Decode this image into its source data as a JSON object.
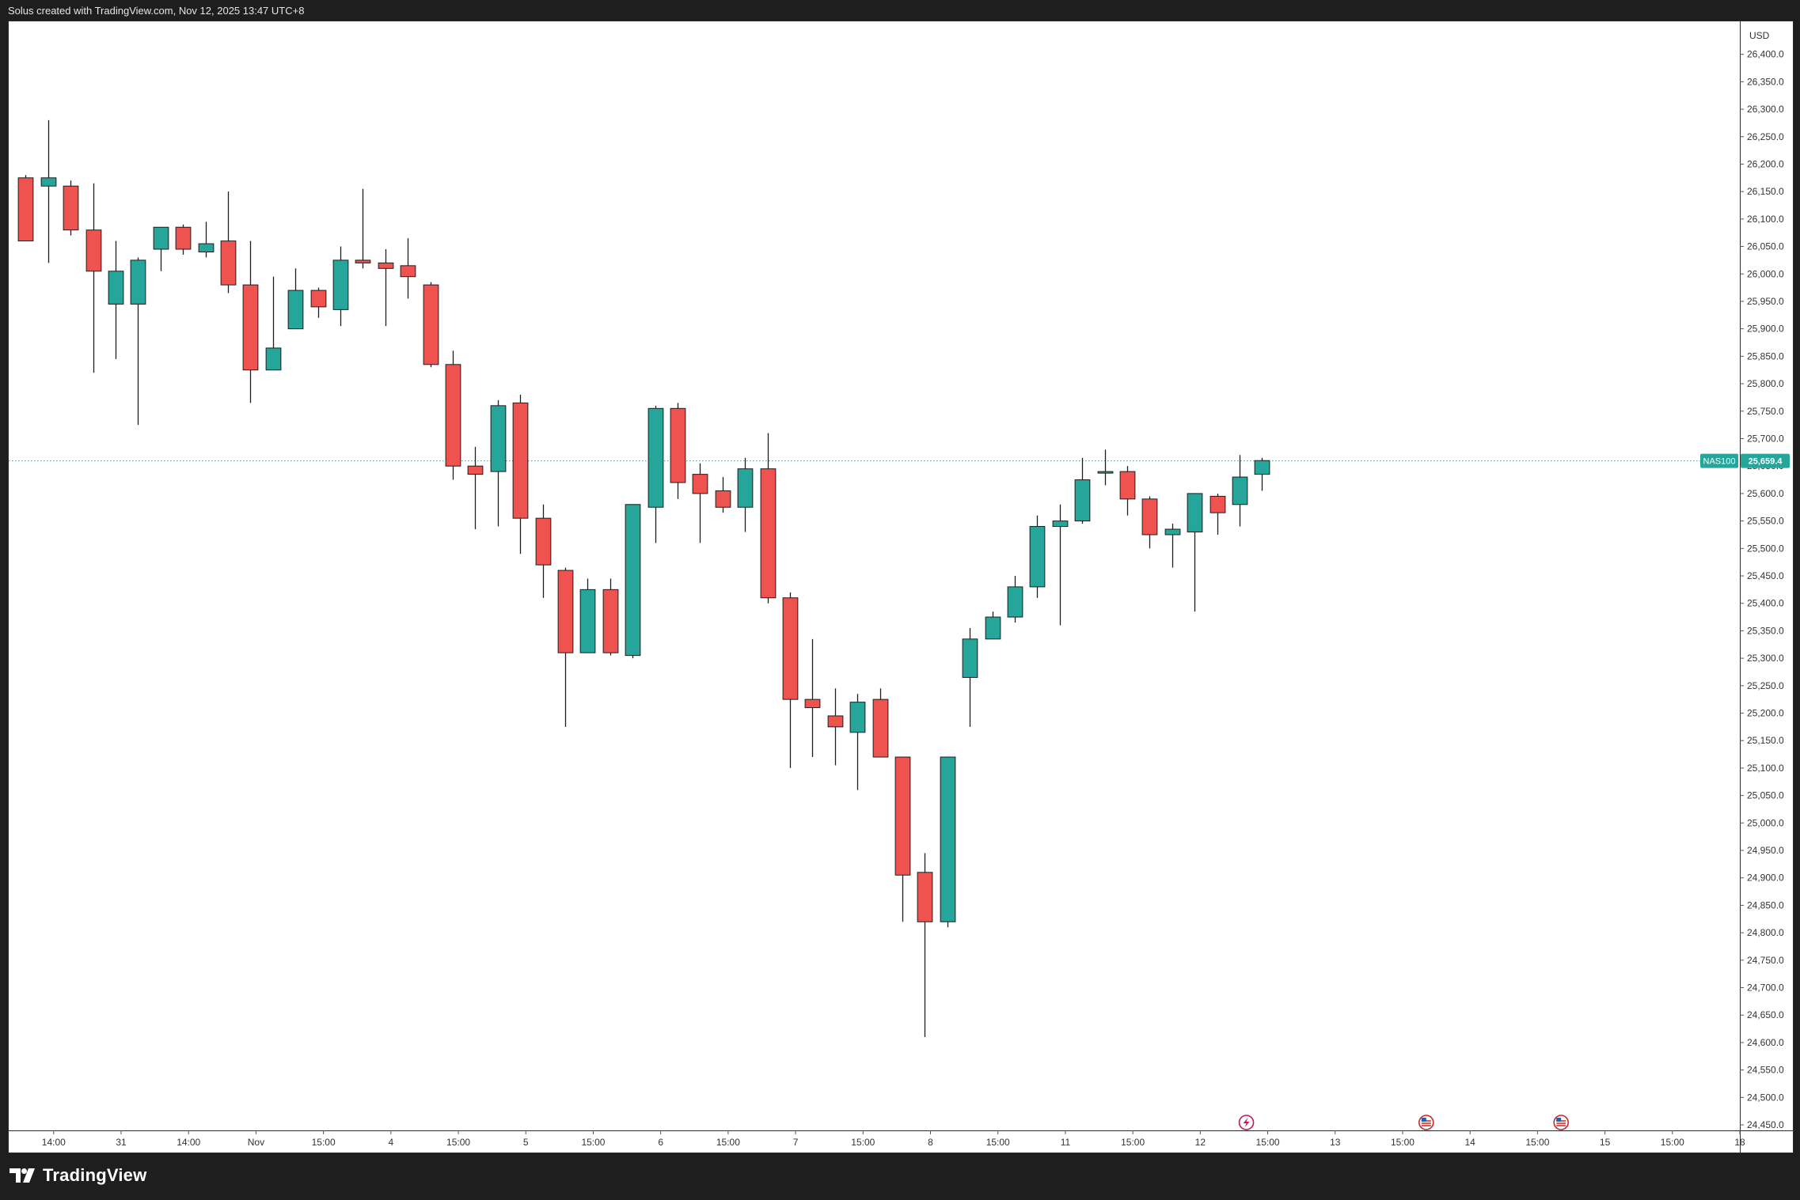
{
  "header": {
    "caption": "Solus created with TradingView.com, Nov 12, 2025 13:47 UTC+8"
  },
  "footer": {
    "brand": "TradingView"
  },
  "colors": {
    "up": "#26a69a",
    "down": "#ef5350",
    "wick": "#1e1e1e",
    "price_line": "#26a69a",
    "axis_text": "#333333"
  },
  "chart_data": {
    "type": "candlestick",
    "symbol": "NAS100",
    "currency": "USD",
    "last_price": 25659.4,
    "last_price_label": "25,659.4",
    "ylim": [
      24440,
      26460
    ],
    "y_ticks": [
      24450,
      24500,
      24550,
      24600,
      24650,
      24700,
      24750,
      24800,
      24850,
      24900,
      24950,
      25000,
      25050,
      25100,
      25150,
      25200,
      25250,
      25300,
      25350,
      25400,
      25450,
      25500,
      25550,
      25600,
      25650,
      25700,
      25750,
      25800,
      25850,
      25900,
      25950,
      26000,
      26050,
      26100,
      26150,
      26200,
      26250,
      26300,
      26350,
      26400
    ],
    "y_tick_labels": [
      "24,450.0",
      "24,500.0",
      "24,550.0",
      "24,600.0",
      "24,650.0",
      "24,700.0",
      "24,750.0",
      "24,800.0",
      "24,850.0",
      "24,900.0",
      "24,950.0",
      "25,000.0",
      "25,050.0",
      "25,100.0",
      "25,150.0",
      "25,200.0",
      "25,250.0",
      "25,300.0",
      "25,350.0",
      "25,400.0",
      "25,450.0",
      "25,500.0",
      "25,550.0",
      "25,600.0",
      "25,650.0",
      "25,700.0",
      "25,750.0",
      "25,800.0",
      "25,850.0",
      "25,900.0",
      "25,950.0",
      "26,000.0",
      "26,050.0",
      "26,100.0",
      "26,150.0",
      "26,200.0",
      "26,250.0",
      "26,300.0",
      "26,350.0",
      "26,400.0"
    ],
    "x_range": [
      -0.75,
      76.25
    ],
    "x_ticks": [
      {
        "label": "14:00",
        "x": 1.25
      },
      {
        "label": "31",
        "x": 4.25
      },
      {
        "label": "14:00",
        "x": 7.25
      },
      {
        "label": "Nov",
        "x": 10.25
      },
      {
        "label": "15:00",
        "x": 13.25
      },
      {
        "label": "4",
        "x": 16.25
      },
      {
        "label": "15:00",
        "x": 19.25
      },
      {
        "label": "5",
        "x": 22.25
      },
      {
        "label": "15:00",
        "x": 25.25
      },
      {
        "label": "6",
        "x": 28.25
      },
      {
        "label": "15:00",
        "x": 31.25
      },
      {
        "label": "7",
        "x": 34.25
      },
      {
        "label": "15:00",
        "x": 37.25
      },
      {
        "label": "8",
        "x": 40.25
      },
      {
        "label": "15:00",
        "x": 43.25
      },
      {
        "label": "11",
        "x": 46.25
      },
      {
        "label": "15:00",
        "x": 49.25
      },
      {
        "label": "12",
        "x": 52.25
      },
      {
        "label": "15:00",
        "x": 55.25
      },
      {
        "label": "13",
        "x": 58.25
      },
      {
        "label": "15:00",
        "x": 61.25
      },
      {
        "label": "14",
        "x": 64.25
      },
      {
        "label": "15:00",
        "x": 67.25
      },
      {
        "label": "15",
        "x": 70.25
      },
      {
        "label": "15:00",
        "x": 73.25
      },
      {
        "label": "18",
        "x": 76.25
      }
    ],
    "event_markers": [
      {
        "icon": "lightning-icon",
        "x": 54.3
      },
      {
        "icon": "us-flag-icon",
        "x": 62.3
      },
      {
        "icon": "us-flag-icon",
        "x": 68.3
      }
    ],
    "candles": [
      [
        26175,
        26180,
        26060,
        26060
      ],
      [
        26160,
        26280,
        26020,
        26175
      ],
      [
        26160,
        26170,
        26070,
        26080
      ],
      [
        26080,
        26165,
        25820,
        26005
      ],
      [
        25945,
        26060,
        25845,
        26005
      ],
      [
        25945,
        26030,
        25725,
        26025
      ],
      [
        26045,
        26085,
        26005,
        26085
      ],
      [
        26085,
        26090,
        26035,
        26045
      ],
      [
        26040,
        26095,
        26030,
        26055
      ],
      [
        26060,
        26150,
        25965,
        25980
      ],
      [
        25980,
        26060,
        25765,
        25825
      ],
      [
        25825,
        25995,
        25825,
        25865
      ],
      [
        25900,
        26010,
        25900,
        25970
      ],
      [
        25970,
        25975,
        25920,
        25940
      ],
      [
        25935,
        26050,
        25905,
        26025
      ],
      [
        26025,
        26155,
        26010,
        26020
      ],
      [
        26020,
        26045,
        25905,
        26010
      ],
      [
        26015,
        26065,
        25955,
        25995
      ],
      [
        25980,
        25985,
        25830,
        25835
      ],
      [
        25835,
        25860,
        25625,
        25650
      ],
      [
        25650,
        25685,
        25535,
        25635
      ],
      [
        25640,
        25770,
        25540,
        25760
      ],
      [
        25765,
        25780,
        25490,
        25555
      ],
      [
        25555,
        25580,
        25410,
        25470
      ],
      [
        25460,
        25465,
        25175,
        25310
      ],
      [
        25310,
        25445,
        25310,
        25425
      ],
      [
        25425,
        25445,
        25305,
        25310
      ],
      [
        25305,
        25580,
        25300,
        25580
      ],
      [
        25575,
        25760,
        25510,
        25755
      ],
      [
        25755,
        25765,
        25590,
        25620
      ],
      [
        25635,
        25655,
        25510,
        25600
      ],
      [
        25605,
        25630,
        25565,
        25575
      ],
      [
        25575,
        25665,
        25530,
        25645
      ],
      [
        25645,
        25710,
        25400,
        25410
      ],
      [
        25410,
        25420,
        25100,
        25225
      ],
      [
        25225,
        25335,
        25120,
        25210
      ],
      [
        25195,
        25245,
        25105,
        25175
      ],
      [
        25165,
        25235,
        25060,
        25220
      ],
      [
        25225,
        25245,
        25120,
        25120
      ],
      [
        25120,
        25120,
        24820,
        24905
      ],
      [
        24910,
        24945,
        24610,
        24820
      ],
      [
        24820,
        25120,
        24810,
        25120
      ],
      [
        25265,
        25355,
        25175,
        25335
      ],
      [
        25335,
        25385,
        25335,
        25375
      ],
      [
        25375,
        25450,
        25365,
        25430
      ],
      [
        25430,
        25560,
        25410,
        25540
      ],
      [
        25540,
        25580,
        25360,
        25550
      ],
      [
        25550,
        25665,
        25545,
        25625
      ],
      [
        25640,
        25680,
        25615,
        25640
      ],
      [
        25640,
        25650,
        25560,
        25590
      ],
      [
        25590,
        25595,
        25500,
        25525
      ],
      [
        25525,
        25545,
        25465,
        25535
      ],
      [
        25530,
        25600,
        25385,
        25600
      ],
      [
        25595,
        25600,
        25525,
        25565
      ],
      [
        25580,
        25670,
        25540,
        25630
      ],
      [
        25635,
        25665,
        25605,
        25660
      ]
    ]
  }
}
